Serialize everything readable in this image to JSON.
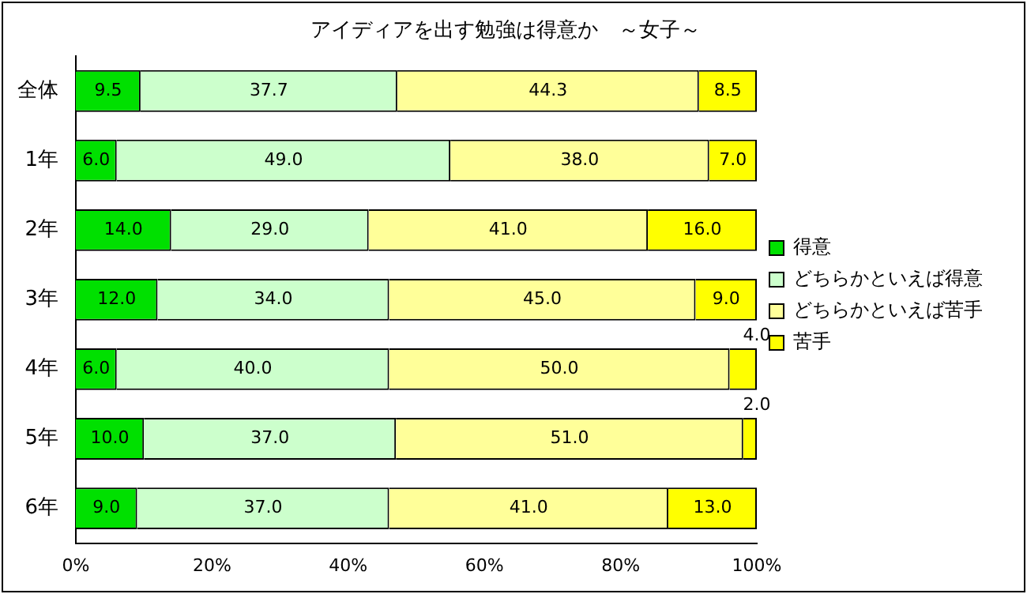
{
  "chart_data": {
    "type": "bar",
    "orientation": "horizontal",
    "stacked": true,
    "title": "アイディアを出す勉強は得意か　～女子～",
    "categories": [
      "全体",
      "1年",
      "2年",
      "3年",
      "4年",
      "5年",
      "6年"
    ],
    "series": [
      {
        "name": "得意",
        "color": "#00e000",
        "values": [
          9.5,
          6.0,
          14.0,
          12.0,
          6.0,
          10.0,
          9.0
        ],
        "value_labels": [
          "9.5",
          "6.0",
          "14.0",
          "12.0",
          "6.0",
          "10.0",
          "9.0"
        ]
      },
      {
        "name": "どちらかといえば得意",
        "color": "#ccffcc",
        "values": [
          37.7,
          49.0,
          29.0,
          34.0,
          40.0,
          37.0,
          37.0
        ],
        "value_labels": [
          "37.7",
          "49.0",
          "29.0",
          "34.0",
          "40.0",
          "37.0",
          "37.0"
        ]
      },
      {
        "name": "どちらかといえば苦手",
        "color": "#ffff99",
        "values": [
          44.3,
          38.0,
          41.0,
          45.0,
          50.0,
          51.0,
          41.0
        ],
        "value_labels": [
          "44.3",
          "38.0",
          "41.0",
          "45.0",
          "50.0",
          "51.0",
          "41.0"
        ]
      },
      {
        "name": "苦手",
        "color": "#ffff00",
        "values": [
          8.5,
          7.0,
          16.0,
          9.0,
          4.0,
          2.0,
          13.0
        ],
        "value_labels": [
          "8.5",
          "7.0",
          "16.0",
          "9.0",
          "4.0",
          "2.0",
          "13.0"
        ]
      }
    ],
    "xlim": [
      0,
      100
    ],
    "xticks": [
      {
        "value": 0,
        "label": "0%"
      },
      {
        "value": 20,
        "label": "20%"
      },
      {
        "value": 40,
        "label": "40%"
      },
      {
        "value": 60,
        "label": "60%"
      },
      {
        "value": 80,
        "label": "80%"
      },
      {
        "value": 100,
        "label": "100%"
      }
    ],
    "grid": false,
    "legend": "right"
  }
}
